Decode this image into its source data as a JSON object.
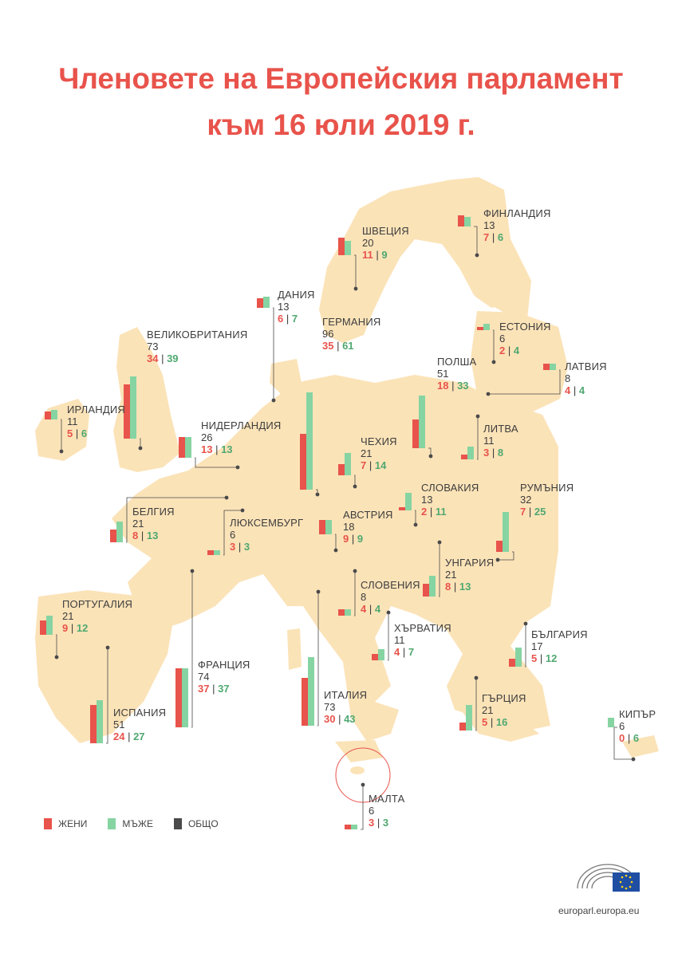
{
  "title_line1": "Членовете на Европейския парламент",
  "title_line2": "към 16 юли 2019 г.",
  "legend": {
    "women": "ЖЕНИ",
    "men": "МЪЖЕ",
    "total": "ОБЩО"
  },
  "footer_url": "europarl.europa.eu",
  "colors": {
    "women": "#e8534b",
    "men": "#86d4a2",
    "total": "#4a4a4a",
    "land": "#fbe3b8",
    "title": "#e8534b"
  },
  "chart_data": {
    "type": "bar",
    "title": "Членовете на Европейския парламент към 16 юли 2019 г.",
    "series": [
      {
        "name": "ЖЕНИ",
        "key": "women"
      },
      {
        "name": "МЪЖЕ",
        "key": "men"
      }
    ],
    "countries": [
      {
        "id": "finland",
        "name": "ФИНЛАНДИЯ",
        "total": 13,
        "women": 7,
        "men": 6
      },
      {
        "id": "sweden",
        "name": "ШВЕЦИЯ",
        "total": 20,
        "women": 11,
        "men": 9
      },
      {
        "id": "denmark",
        "name": "ДАНИЯ",
        "total": 13,
        "women": 6,
        "men": 7
      },
      {
        "id": "estonia",
        "name": "ЕСТОНИЯ",
        "total": 6,
        "women": 2,
        "men": 4
      },
      {
        "id": "latvia",
        "name": "ЛАТВИЯ",
        "total": 8,
        "women": 4,
        "men": 4
      },
      {
        "id": "uk",
        "name": "ВЕЛИКОБРИТАНИЯ",
        "total": 73,
        "women": 34,
        "men": 39
      },
      {
        "id": "germany",
        "name": "ГЕРМАНИЯ",
        "total": 96,
        "women": 35,
        "men": 61
      },
      {
        "id": "poland",
        "name": "ПОЛША",
        "total": 51,
        "women": 18,
        "men": 33
      },
      {
        "id": "ireland",
        "name": "ИРЛАНДИЯ",
        "total": 11,
        "women": 5,
        "men": 6
      },
      {
        "id": "netherlands",
        "name": "НИДЕРЛАНДИЯ",
        "total": 26,
        "women": 13,
        "men": 13
      },
      {
        "id": "lithuania",
        "name": "ЛИТВА",
        "total": 11,
        "women": 3,
        "men": 8
      },
      {
        "id": "czechia",
        "name": "ЧЕХИЯ",
        "total": 21,
        "women": 7,
        "men": 14
      },
      {
        "id": "slovakia",
        "name": "СЛОВАКИЯ",
        "total": 13,
        "women": 2,
        "men": 11
      },
      {
        "id": "romania",
        "name": "РУМЪНИЯ",
        "total": 32,
        "women": 7,
        "men": 25
      },
      {
        "id": "belgium",
        "name": "БЕЛГИЯ",
        "total": 21,
        "women": 8,
        "men": 13
      },
      {
        "id": "luxembourg",
        "name": "ЛЮКСЕМБУРГ",
        "total": 6,
        "women": 3,
        "men": 3
      },
      {
        "id": "austria",
        "name": "АВСТРИЯ",
        "total": 18,
        "women": 9,
        "men": 9
      },
      {
        "id": "hungary",
        "name": "УНГАРИЯ",
        "total": 21,
        "women": 8,
        "men": 13
      },
      {
        "id": "slovenia",
        "name": "СЛОВЕНИЯ",
        "total": 8,
        "women": 4,
        "men": 4
      },
      {
        "id": "portugal",
        "name": "ПОРТУГАЛИЯ",
        "total": 21,
        "women": 9,
        "men": 12
      },
      {
        "id": "croatia",
        "name": "ХЪРВАТИЯ",
        "total": 11,
        "women": 4,
        "men": 7
      },
      {
        "id": "bulgaria",
        "name": "БЪЛГАРИЯ",
        "total": 17,
        "women": 5,
        "men": 12
      },
      {
        "id": "france",
        "name": "ФРАНЦИЯ",
        "total": 74,
        "women": 37,
        "men": 37
      },
      {
        "id": "spain",
        "name": "ИСПАНИЯ",
        "total": 51,
        "women": 24,
        "men": 27
      },
      {
        "id": "italy",
        "name": "ИТАЛИЯ",
        "total": 73,
        "women": 30,
        "men": 43
      },
      {
        "id": "greece",
        "name": "ГЪРЦИЯ",
        "total": 21,
        "women": 5,
        "men": 16
      },
      {
        "id": "cyprus",
        "name": "КИПЪР",
        "total": 6,
        "women": 0,
        "men": 6
      },
      {
        "id": "malta",
        "name": "МАЛТА",
        "total": 6,
        "women": 3,
        "men": 3
      }
    ]
  }
}
